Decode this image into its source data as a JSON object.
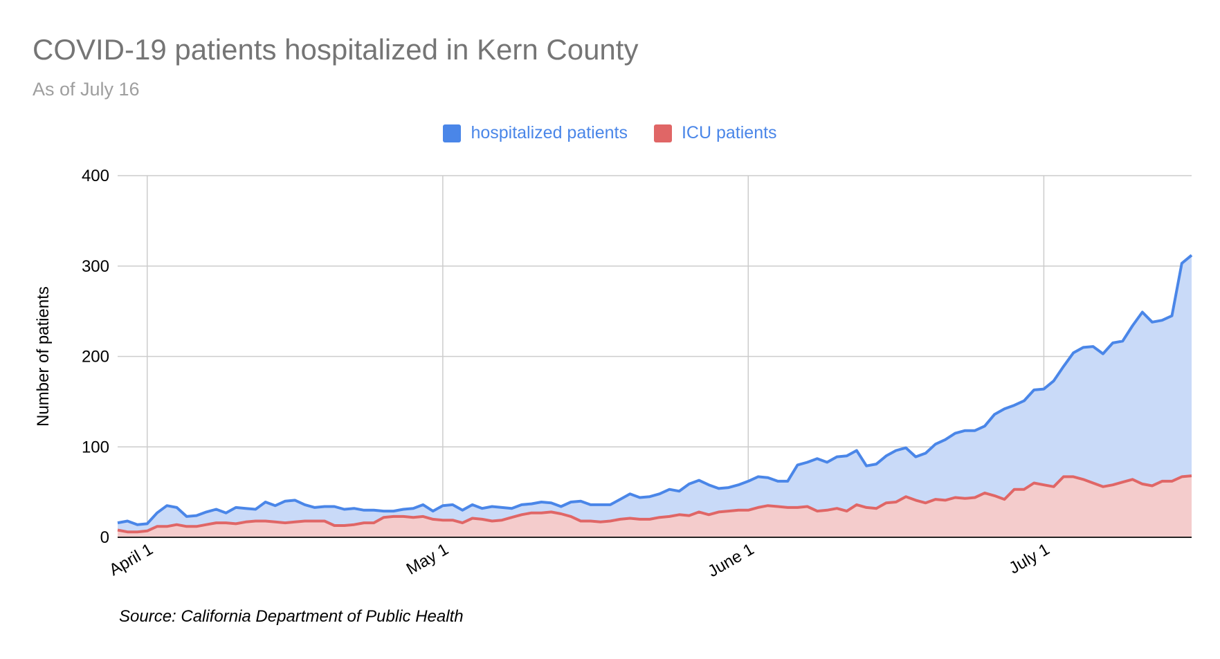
{
  "chart_data": {
    "type": "area",
    "title": "COVID-19 patients hospitalized in Kern County",
    "subtitle": "As of July 16",
    "ylabel": "Number of patients",
    "xlabel": "",
    "source": "Source: California Department of Public Health",
    "ylim": [
      0,
      400
    ],
    "yticks": [
      0,
      100,
      200,
      300,
      400
    ],
    "xticks": [
      {
        "date": "2020-04-01",
        "label": "April 1"
      },
      {
        "date": "2020-05-01",
        "label": "May 1"
      },
      {
        "date": "2020-06-01",
        "label": "June 1"
      },
      {
        "date": "2020-07-01",
        "label": "July 1"
      }
    ],
    "x_start": "2020-03-29",
    "x_end": "2020-07-16",
    "grid": true,
    "legend_position": "top",
    "series": [
      {
        "name": "hospitalized patients",
        "color": "#4a86e8",
        "fill": "#c9daf8",
        "values": [
          16,
          18,
          14,
          15,
          27,
          35,
          33,
          23,
          24,
          28,
          31,
          27,
          33,
          32,
          31,
          39,
          35,
          40,
          41,
          36,
          33,
          34,
          34,
          31,
          32,
          30,
          30,
          29,
          29,
          31,
          32,
          36,
          29,
          35,
          36,
          30,
          36,
          32,
          34,
          33,
          32,
          36,
          37,
          39,
          38,
          34,
          39,
          40,
          36,
          36,
          36,
          42,
          48,
          44,
          45,
          48,
          53,
          51,
          59,
          63,
          58,
          54,
          55,
          58,
          62,
          67,
          66,
          62,
          62,
          80,
          83,
          87,
          83,
          89,
          90,
          96,
          79,
          81,
          90,
          96,
          99,
          89,
          93,
          103,
          108,
          115,
          118,
          118,
          123,
          136,
          142,
          146,
          151,
          163,
          164,
          173,
          189,
          204,
          210,
          211,
          203,
          215,
          217,
          234,
          249,
          238,
          240,
          245,
          303,
          312
        ],
        "value_labels": []
      },
      {
        "name": "ICU patients",
        "color": "#e06666",
        "fill": "#f4cccc",
        "values": [
          8,
          6,
          6,
          7,
          12,
          12,
          14,
          12,
          12,
          14,
          16,
          16,
          15,
          17,
          18,
          18,
          17,
          16,
          17,
          18,
          18,
          18,
          13,
          13,
          14,
          16,
          16,
          22,
          23,
          23,
          22,
          23,
          20,
          19,
          19,
          16,
          21,
          20,
          18,
          19,
          22,
          25,
          27,
          27,
          28,
          26,
          23,
          18,
          18,
          17,
          18,
          20,
          21,
          20,
          20,
          22,
          23,
          25,
          24,
          28,
          25,
          28,
          29,
          30,
          30,
          33,
          35,
          34,
          33,
          33,
          34,
          29,
          30,
          32,
          29,
          36,
          33,
          32,
          38,
          39,
          45,
          41,
          38,
          42,
          41,
          44,
          43,
          44,
          49,
          46,
          42,
          53,
          53,
          60,
          58,
          56,
          67,
          67,
          64,
          60,
          56,
          58,
          61,
          64,
          59,
          57,
          62,
          62,
          67,
          68
        ],
        "value_labels": []
      }
    ]
  }
}
